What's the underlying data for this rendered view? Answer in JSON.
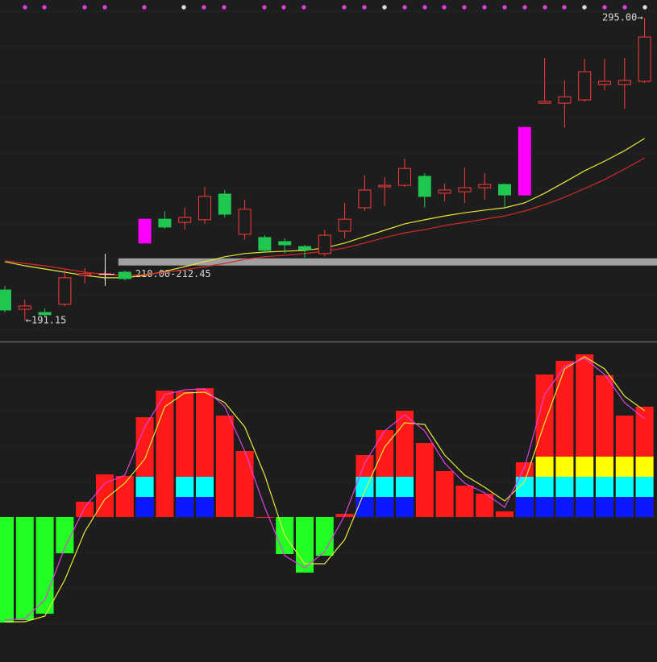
{
  "chart_data": [
    {
      "type": "candlestick",
      "ylim": [
        187.8,
        301.1
      ],
      "open": [
        201.6,
        195.0,
        193.9,
        196.7,
        206.6,
        206.9,
        207.7,
        217.7,
        225.9,
        224.8,
        225.7,
        234.5,
        220.7,
        219.6,
        218.2,
        216.5,
        214.1,
        221.8,
        229.8,
        237.0,
        237.5,
        240.6,
        234.8,
        235.3,
        236.7,
        237.8,
        234.2,
        265.7,
        265.7,
        266.8,
        272.1,
        272.1,
        273.2
      ],
      "high": [
        203.0,
        198.3,
        195.3,
        208.5,
        209.1,
        208.5,
        208.3,
        225.9,
        228.7,
        229.8,
        237.0,
        235.9,
        232.6,
        220.4,
        219.3,
        217.1,
        222.3,
        231.5,
        240.9,
        240.3,
        246.7,
        241.7,
        238.1,
        243.6,
        241.7,
        238.1,
        257.4,
        281.2,
        273.5,
        280.9,
        280.9,
        281.2,
        295.0
      ],
      "low": [
        193.9,
        191.15,
        192.5,
        196.1,
        203.8,
        204.9,
        204.9,
        217.7,
        222.6,
        222.3,
        224.3,
        226.5,
        218.8,
        214.6,
        214.1,
        212.7,
        213.2,
        219.3,
        228.7,
        230.4,
        237.0,
        229.8,
        232.0,
        231.5,
        232.6,
        229.8,
        234.2,
        265.7,
        257.4,
        266.3,
        270.1,
        263.8,
        272.6
      ],
      "close": [
        194.7,
        196.1,
        193.1,
        205.8,
        207.2,
        207.2,
        205.5,
        225.9,
        223.2,
        226.5,
        233.7,
        227.6,
        229.3,
        215.2,
        217.1,
        215.4,
        220.4,
        225.9,
        235.9,
        237.5,
        243.3,
        233.7,
        235.9,
        236.7,
        237.8,
        234.2,
        257.4,
        266.3,
        267.9,
        276.5,
        273.2,
        273.5,
        288.4
      ],
      "colors": [
        "#1fc750",
        "#ff3a3a",
        "#1fc750",
        "#ff3a3a",
        "#ff3a3a",
        "#ff3a3a",
        "#1fc750",
        "#ff00ff",
        "#1fc750",
        "#ff3a3a",
        "#ff3a3a",
        "#1fc750",
        "#ff3a3a",
        "#1fc750",
        "#1fc750",
        "#1fc750",
        "#ff3a3a",
        "#ff3a3a",
        "#ff3a3a",
        "#ff3a3a",
        "#ff3a3a",
        "#1fc750",
        "#ff3a3a",
        "#ff3a3a",
        "#ff3a3a",
        "#1fc750",
        "#ff00ff",
        "#ff3a3a",
        "#ff3a3a",
        "#ff3a3a",
        "#ff3a3a",
        "#ff3a3a",
        "#ff3a3a"
      ],
      "series": [
        {
          "color": "#e8e83a",
          "values": [
            211.3,
            209.9,
            208.8,
            207.7,
            206.6,
            205.8,
            205.8,
            206.6,
            208.0,
            209.6,
            211.3,
            213.0,
            214.1,
            214.6,
            214.9,
            215.2,
            216.0,
            217.7,
            219.9,
            222.1,
            224.3,
            225.7,
            227.0,
            228.1,
            229.0,
            229.8,
            231.5,
            234.8,
            238.6,
            242.5,
            245.8,
            249.4,
            253.6
          ]
        },
        {
          "color": "#d42a2a",
          "values": [
            211.6,
            210.7,
            209.9,
            208.8,
            207.7,
            206.9,
            206.6,
            206.9,
            207.7,
            208.5,
            209.6,
            210.7,
            212.1,
            213.0,
            213.5,
            214.1,
            214.9,
            216.0,
            217.7,
            219.6,
            221.2,
            222.3,
            223.7,
            224.8,
            225.9,
            227.0,
            228.7,
            230.9,
            233.4,
            236.4,
            239.5,
            243.1,
            246.9
          ]
        }
      ],
      "zone": {
        "low": 210.0,
        "high": 212.45,
        "label": "210.00-212.45",
        "color": "#a0a0a0"
      },
      "annotations": [
        {
          "text": "295.00→",
          "value": 295.0
        },
        {
          "text": "←191.15",
          "value": 191.15
        }
      ]
    },
    {
      "type": "bar",
      "ylim": [
        -90,
        108.5
      ],
      "values": [
        -65.5,
        -64,
        -60,
        -22.5,
        9.5,
        26.5,
        25.5,
        62,
        78.5,
        78,
        80,
        63,
        41,
        0,
        -23,
        -34.5,
        -24,
        2,
        38.5,
        54,
        66,
        46,
        28.5,
        19.5,
        14.5,
        3.5,
        34,
        88.5,
        97,
        101,
        88,
        63,
        68.5
      ],
      "pos_color": "#ff1a1a",
      "neg_color": "#22ff22",
      "overlays": [
        {
          "color": "#0a18ff",
          "values": [
            null,
            null,
            null,
            null,
            null,
            null,
            null,
            12.5,
            null,
            12.5,
            12.5,
            null,
            null,
            null,
            null,
            null,
            null,
            null,
            12.5,
            12.5,
            12.5,
            null,
            null,
            null,
            null,
            null,
            12.5,
            12.5,
            12.5,
            12.5,
            12.5,
            12.5,
            12.5
          ]
        },
        {
          "color": "#00ffff",
          "values": [
            null,
            null,
            null,
            null,
            null,
            null,
            null,
            12.5,
            null,
            12.5,
            12.5,
            null,
            null,
            null,
            null,
            null,
            null,
            null,
            12.5,
            12.5,
            12.5,
            null,
            null,
            null,
            null,
            null,
            12.5,
            12.5,
            12.5,
            12.5,
            12.5,
            12.5,
            12.5
          ]
        },
        {
          "color": "#ffff00",
          "values": [
            null,
            null,
            null,
            null,
            null,
            null,
            null,
            null,
            null,
            null,
            null,
            null,
            null,
            null,
            null,
            null,
            null,
            null,
            null,
            null,
            null,
            null,
            null,
            null,
            null,
            null,
            null,
            12.5,
            12.5,
            12.5,
            12.5,
            12.5,
            12.5
          ]
        }
      ],
      "lines": [
        {
          "color": "#e8e83a",
          "values": [
            -65,
            -65,
            -61.5,
            -39,
            -9,
            11,
            21,
            36,
            68.5,
            77,
            77.5,
            71,
            56,
            26,
            -11.5,
            -29,
            -29,
            -14,
            16,
            43.5,
            58.5,
            57.5,
            38.5,
            26,
            18.5,
            10,
            22,
            58.5,
            92,
            99.5,
            92,
            75,
            66
          ]
        },
        {
          "color": "#e040e0",
          "values": [
            -64,
            -63,
            -51.5,
            -19,
            6,
            21,
            26,
            56,
            76,
            79,
            79.5,
            68.5,
            41,
            6,
            -24,
            -31.5,
            -21.5,
            1,
            33.5,
            53.5,
            63.5,
            53.5,
            33.5,
            21,
            15,
            6,
            31,
            76,
            93.5,
            98.5,
            88.5,
            71,
            61
          ]
        }
      ]
    }
  ]
}
